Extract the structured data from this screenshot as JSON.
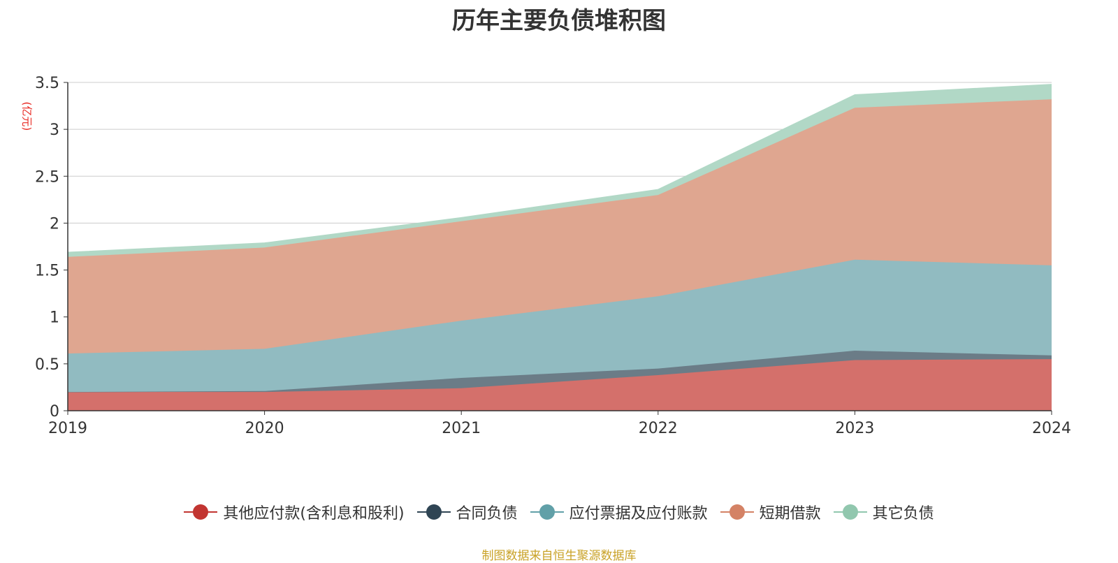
{
  "title": "历年主要负债堆积图",
  "unit_label": "(亿元)",
  "source_text": "制图数据来自恒生聚源数据库",
  "chart_data": {
    "type": "area",
    "stacked": true,
    "title": "历年主要负债堆积图",
    "ylabel": "(亿元)",
    "ylim": [
      0,
      3.5
    ],
    "yticks": [
      "0",
      "0.5",
      "1",
      "1.5",
      "2",
      "2.5",
      "3",
      "3.5"
    ],
    "categories": [
      "2019",
      "2020",
      "2021",
      "2022",
      "2023",
      "2024"
    ],
    "grid": true,
    "legend_position": "bottom",
    "series": [
      {
        "name": "其他应付款(含利息和股利)",
        "color": "#c23531",
        "area_color": "#d4706b",
        "values": [
          0.2,
          0.2,
          0.24,
          0.38,
          0.54,
          0.55
        ]
      },
      {
        "name": "合同负债",
        "color": "#2f4554",
        "area_color": "#6b7c87",
        "values": [
          0.0,
          0.01,
          0.11,
          0.07,
          0.1,
          0.04
        ]
      },
      {
        "name": "应付票据及应付账款",
        "color": "#61a0a8",
        "area_color": "#91bbc1",
        "values": [
          0.41,
          0.45,
          0.61,
          0.77,
          0.97,
          0.96
        ]
      },
      {
        "name": "短期借款",
        "color": "#d48265",
        "area_color": "#dfa690",
        "values": [
          1.03,
          1.08,
          1.06,
          1.08,
          1.62,
          1.77
        ]
      },
      {
        "name": "其它负债",
        "color": "#91c7ae",
        "area_color": "#b1d8c6",
        "values": [
          0.05,
          0.05,
          0.04,
          0.06,
          0.14,
          0.16
        ]
      }
    ]
  }
}
